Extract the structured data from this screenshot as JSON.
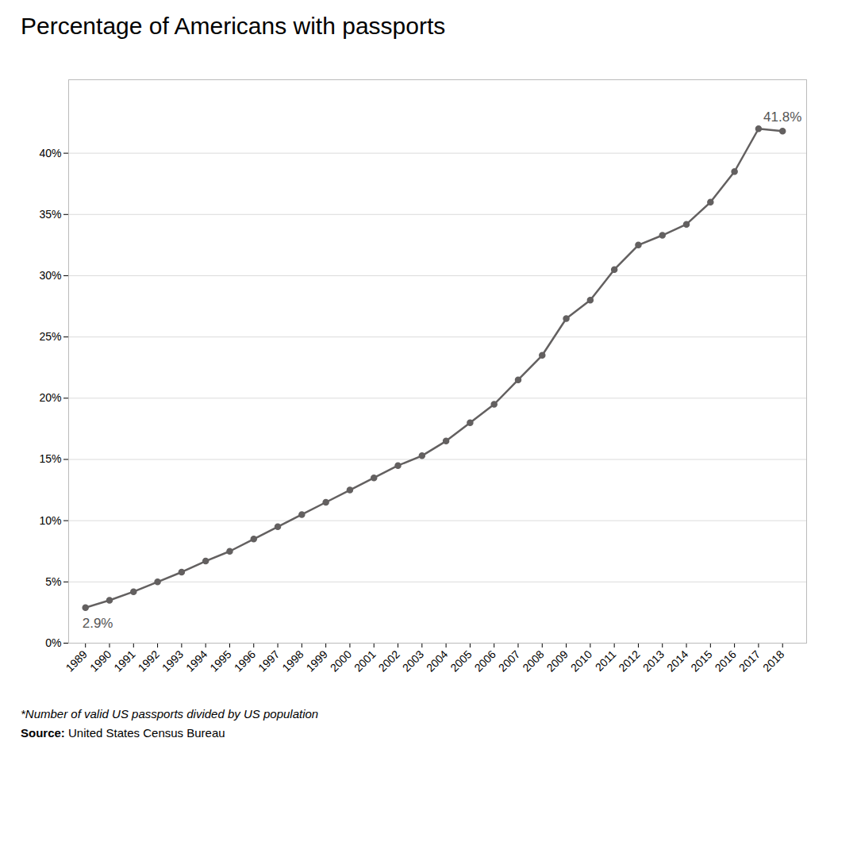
{
  "chart_data": {
    "type": "line",
    "title": "Percentage of Americans with passports",
    "x": [
      1989,
      1990,
      1991,
      1992,
      1993,
      1994,
      1995,
      1996,
      1997,
      1998,
      1999,
      2000,
      2001,
      2002,
      2003,
      2004,
      2005,
      2006,
      2007,
      2008,
      2009,
      2010,
      2011,
      2012,
      2013,
      2014,
      2015,
      2016,
      2017,
      2018
    ],
    "values": [
      2.9,
      3.5,
      4.2,
      5.0,
      5.8,
      6.7,
      7.5,
      8.5,
      9.5,
      10.5,
      11.5,
      12.5,
      13.5,
      14.5,
      15.3,
      16.5,
      18.0,
      19.5,
      21.5,
      23.5,
      26.5,
      28.0,
      30.5,
      32.5,
      33.3,
      34.2,
      36.0,
      38.5,
      42.0,
      41.8
    ],
    "color": "#636060",
    "marker": "circle",
    "xlim": [
      1988.3,
      2019.0
    ],
    "xticks": [
      1989,
      1990,
      1991,
      1992,
      1993,
      1994,
      1995,
      1996,
      1997,
      1998,
      1999,
      2000,
      2001,
      2002,
      2003,
      2004,
      2005,
      2006,
      2007,
      2008,
      2009,
      2010,
      2011,
      2012,
      2013,
      2014,
      2015,
      2016,
      2017,
      2018
    ],
    "ylim": [
      0,
      46
    ],
    "yticks": [
      {
        "value": 0,
        "label": "0%"
      },
      {
        "value": 5,
        "label": "5%"
      },
      {
        "value": 10,
        "label": "10%"
      },
      {
        "value": 15,
        "label": "15%"
      },
      {
        "value": 20,
        "label": "20%"
      },
      {
        "value": 25,
        "label": "25%"
      },
      {
        "value": 30,
        "label": "30%"
      },
      {
        "value": 35,
        "label": "35%"
      },
      {
        "value": 40,
        "label": "40%"
      }
    ],
    "grid": true,
    "annotations": [
      {
        "text": "2.9%",
        "x": 1989,
        "y": 2.9
      },
      {
        "text": "41.8%",
        "x": 2018,
        "y": 41.8
      }
    ],
    "footnote": "*Number of valid US passports divided by US population",
    "source_label": "Source:",
    "source": "United States Census Bureau"
  }
}
